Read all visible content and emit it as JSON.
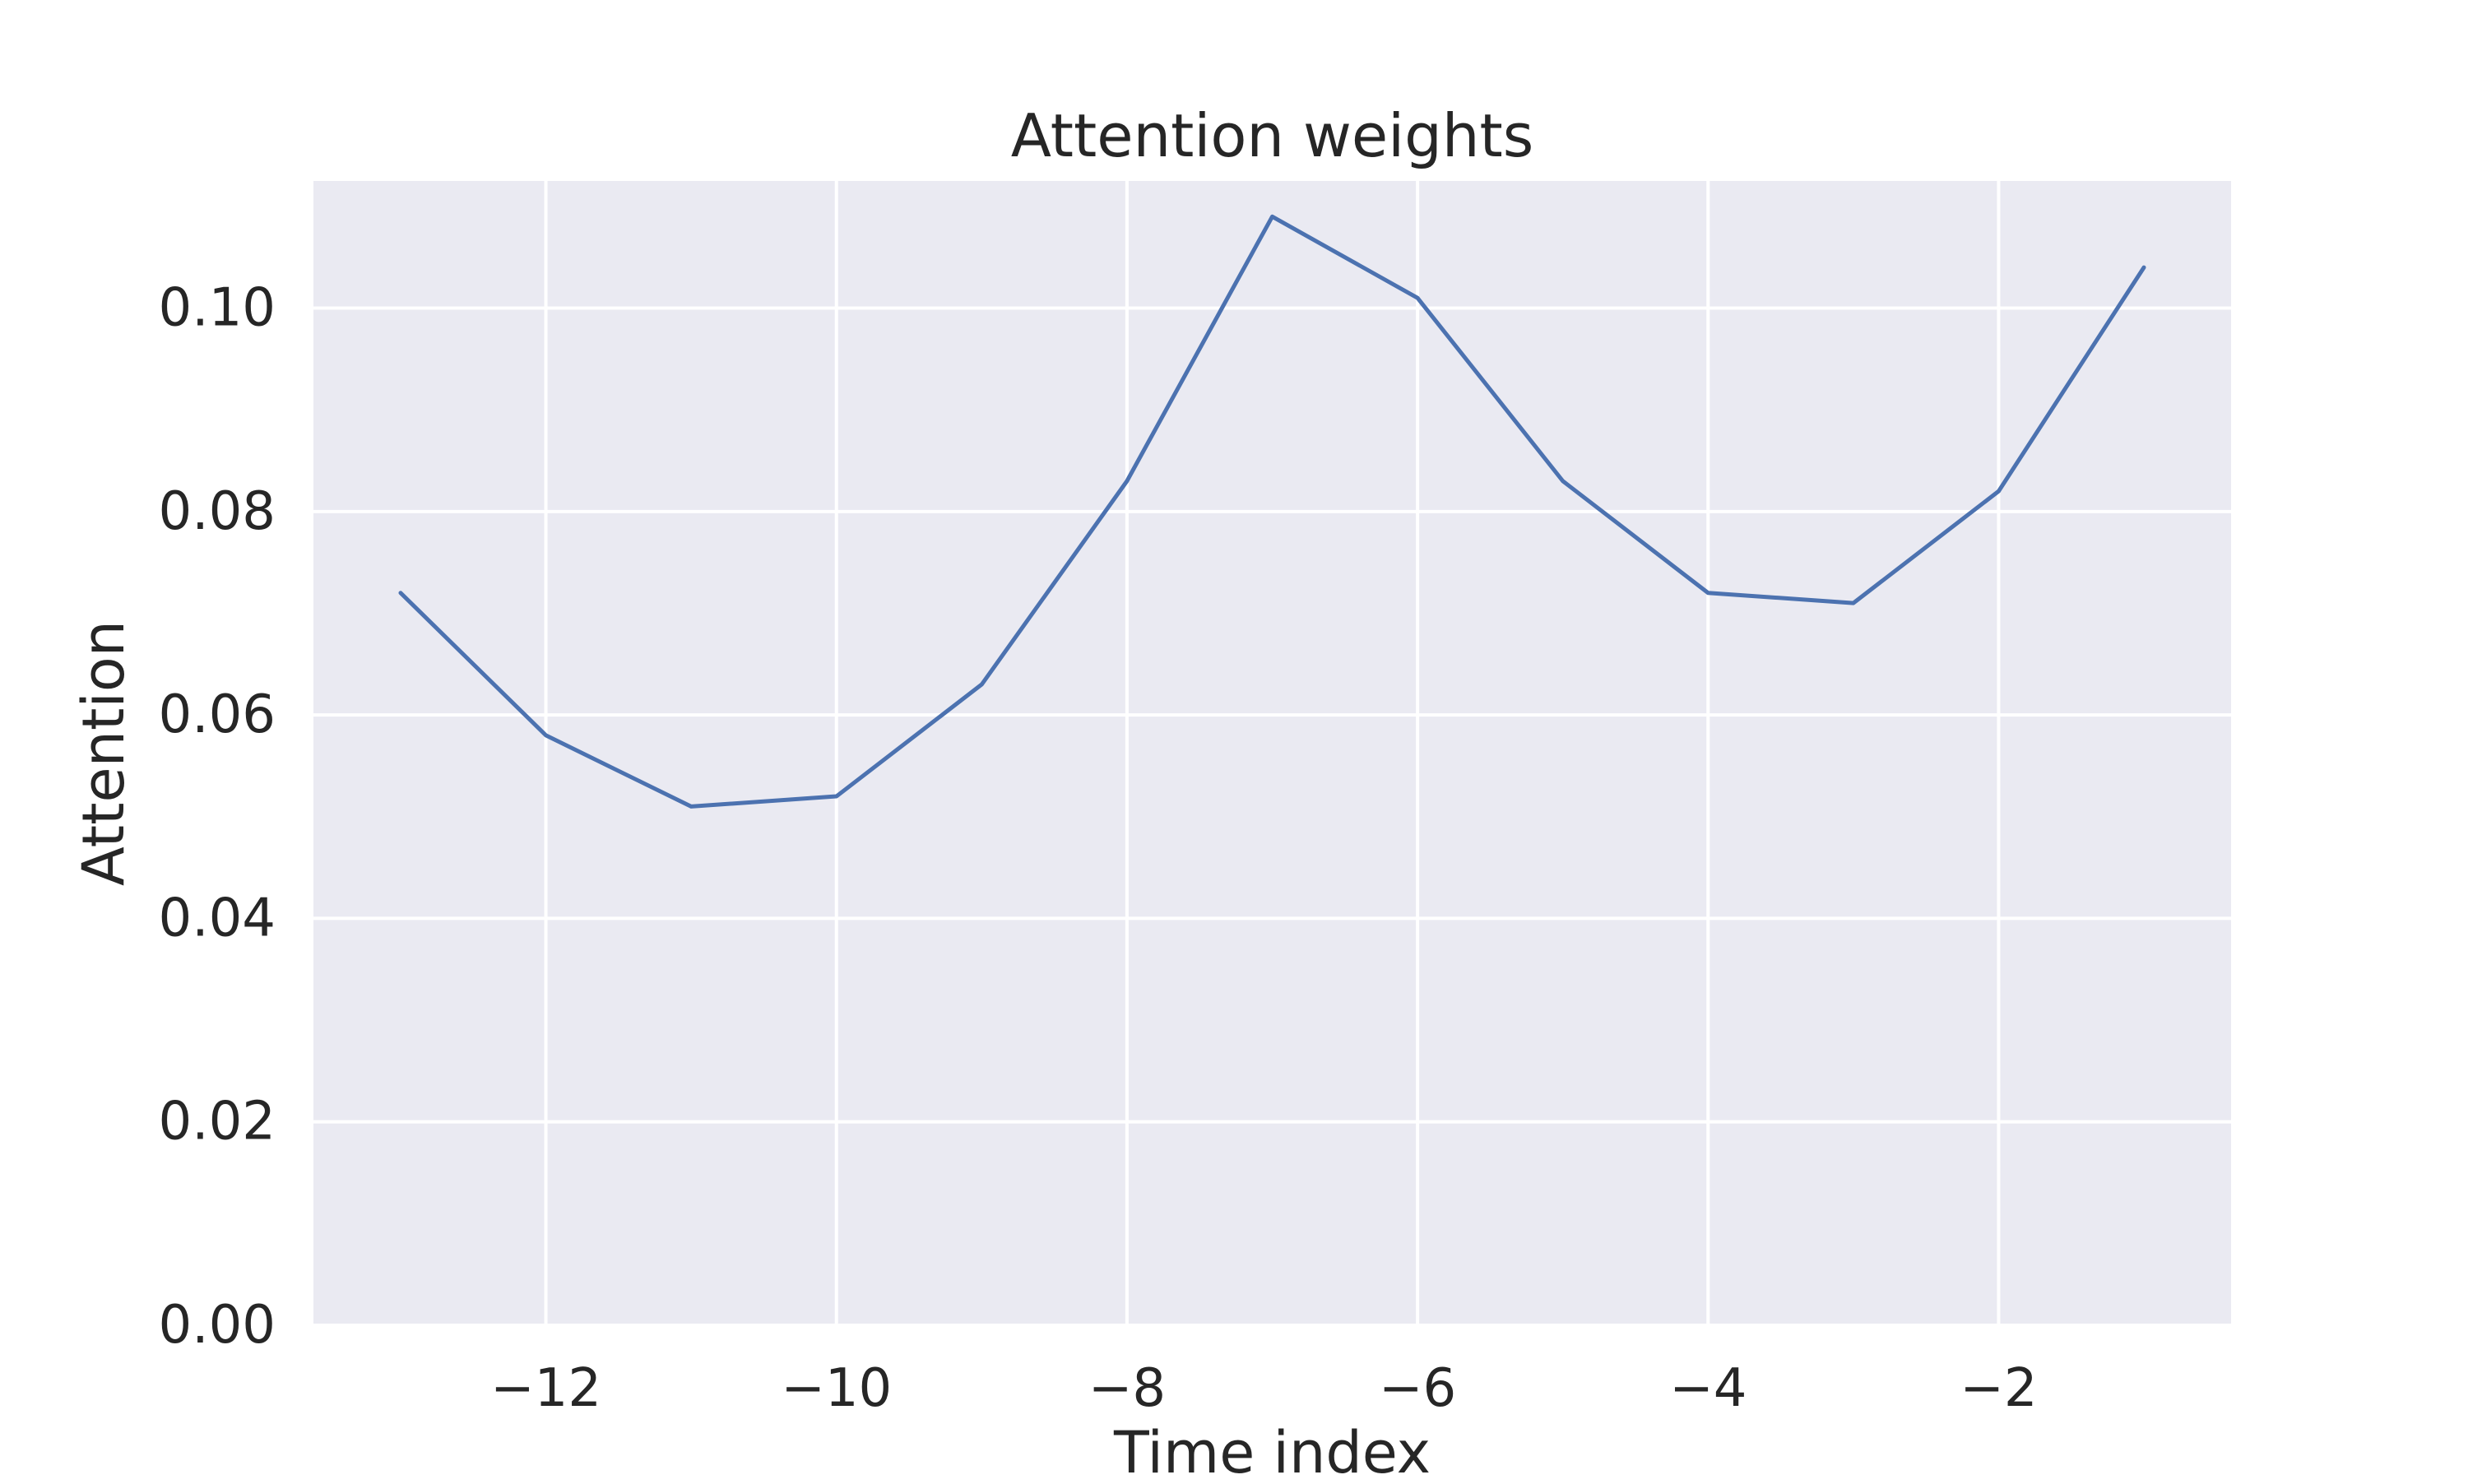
{
  "chart_data": {
    "type": "line",
    "title": "Attention weights",
    "xlabel": "Time index",
    "ylabel": "Attention",
    "x": [
      -13,
      -12,
      -11,
      -10,
      -9,
      -8,
      -7,
      -6,
      -5,
      -4,
      -3,
      -2,
      -1
    ],
    "series": [
      {
        "values": [
          0.072,
          0.058,
          0.051,
          0.052,
          0.063,
          0.083,
          0.109,
          0.101,
          0.083,
          0.072,
          0.071,
          0.082,
          0.104
        ],
        "color": "#4c72b0"
      }
    ],
    "xlim": [
      -13.6,
      -0.4
    ],
    "ylim": [
      0,
      0.1125
    ],
    "xticks": [
      -12,
      -10,
      -8,
      -6,
      -4,
      -2
    ],
    "xtick_labels": [
      "−12",
      "−10",
      "−8",
      "−6",
      "−4",
      "−2"
    ],
    "yticks": [
      0,
      0.02,
      0.04,
      0.06,
      0.08,
      0.1
    ],
    "ytick_labels": [
      "0.00",
      "0.02",
      "0.04",
      "0.06",
      "0.08",
      "0.10"
    ],
    "grid": true,
    "background_color": "#eaeaf2",
    "grid_color": "#ffffff"
  }
}
